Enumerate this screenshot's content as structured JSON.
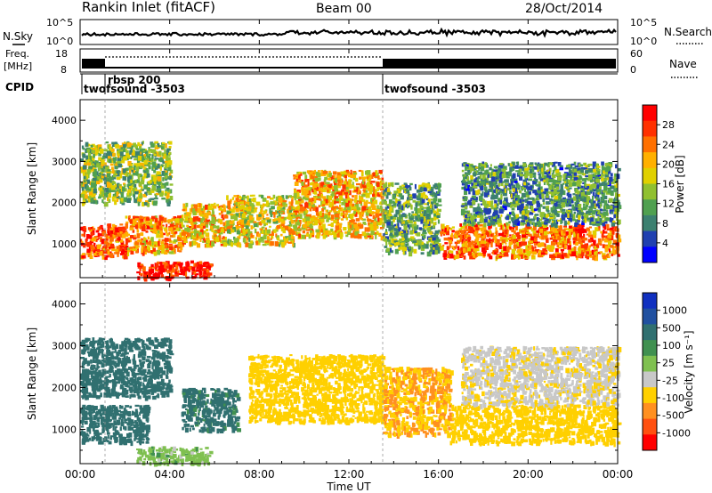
{
  "header": {
    "title": "Rankin Inlet (fitACF)",
    "beam": "Beam 00",
    "date": "28/Oct/2014"
  },
  "top_panels": {
    "nsky_label": "N.Sky",
    "nsearch_label": "N.Search",
    "nsky_ticks": [
      "10^5",
      "10^0"
    ],
    "nsearch_ticks": [
      "10^5",
      "10^0"
    ],
    "freq_label": "Freq.",
    "freq_unit": "[MHz]",
    "freq_ticks": [
      "18",
      "8"
    ],
    "nave_label": "Nave",
    "nave_ticks": [
      "60",
      "0"
    ],
    "cpid_label": "CPID",
    "cpid_entries": [
      {
        "name": "twofsound -3503",
        "start_hour": 0.0
      },
      {
        "name": "rbsp 200",
        "start_hour": 1.05
      },
      {
        "name": "twofsound -3503",
        "start_hour": 13.5
      }
    ]
  },
  "power_colorbar": {
    "label": "Power [dB]",
    "ticks": [
      "28",
      "24",
      "20",
      "16",
      "12",
      "8",
      "4"
    ],
    "colors": [
      "#0000ff",
      "#2040b0",
      "#3c8070",
      "#50a050",
      "#90c030",
      "#e0d000",
      "#ffb000",
      "#ff7000",
      "#ff3000",
      "#ff0000"
    ]
  },
  "velocity_colorbar": {
    "label": "Velocity [m s⁻¹]",
    "ticks": [
      "1000",
      "500",
      "100",
      "25",
      "-25",
      "-100",
      "-500",
      "-1000"
    ],
    "colors": [
      "#1030c0",
      "#2050a0",
      "#307070",
      "#409050",
      "#7fc050",
      "#c8c8c8",
      "#ffd000",
      "#ff9020",
      "#ff5010",
      "#ff0000"
    ]
  },
  "x_axis": {
    "label": "Time UT",
    "ticks": [
      "00:00",
      "04:00",
      "08:00",
      "12:00",
      "16:00",
      "20:00",
      "00:00"
    ]
  },
  "chart_data": [
    {
      "type": "heatmap",
      "title": "Power",
      "xlabel": "Time UT",
      "ylabel": "Slant Range [km]",
      "xlim": [
        0,
        24
      ],
      "ylim": [
        180,
        4500
      ],
      "y_ticks": [
        1000,
        2000,
        3000,
        4000
      ],
      "colorbar_label": "Power [dB]",
      "colorbar_range": [
        0,
        32
      ],
      "bands": [
        {
          "t_start": 0.0,
          "t_end": 2.0,
          "r_low": 700,
          "r_high": 1500,
          "value": 26
        },
        {
          "t_start": 2.0,
          "t_end": 4.5,
          "r_low": 800,
          "r_high": 1700,
          "value": 22
        },
        {
          "t_start": 2.5,
          "t_end": 5.8,
          "r_low": 200,
          "r_high": 600,
          "value": 30
        },
        {
          "t_start": 4.5,
          "t_end": 6.5,
          "r_low": 1000,
          "r_high": 2000,
          "value": 20
        },
        {
          "t_start": 6.5,
          "t_end": 9.5,
          "r_low": 1000,
          "r_high": 2200,
          "value": 18
        },
        {
          "t_start": 9.5,
          "t_end": 13.5,
          "r_low": 1200,
          "r_high": 2800,
          "value": 20
        },
        {
          "t_start": 13.5,
          "t_end": 16.0,
          "r_low": 800,
          "r_high": 2500,
          "value": 12
        },
        {
          "t_start": 16.0,
          "t_end": 24.0,
          "r_low": 700,
          "r_high": 1500,
          "value": 24
        },
        {
          "t_start": 17.0,
          "t_end": 24.0,
          "r_low": 1500,
          "r_high": 3000,
          "value": 10
        },
        {
          "t_start": 0.0,
          "t_end": 4.0,
          "r_low": 2000,
          "r_high": 3500,
          "value": 14
        }
      ]
    },
    {
      "type": "heatmap",
      "title": "Velocity",
      "xlabel": "Time UT",
      "ylabel": "Slant Range [km]",
      "xlim": [
        0,
        24
      ],
      "ylim": [
        180,
        4500
      ],
      "y_ticks": [
        1000,
        2000,
        3000,
        4000
      ],
      "colorbar_label": "Velocity [m s⁻¹]",
      "bands": [
        {
          "t_start": 0.0,
          "t_end": 3.0,
          "r_low": 700,
          "r_high": 1600,
          "value": 300
        },
        {
          "t_start": 2.5,
          "t_end": 5.8,
          "r_low": 200,
          "r_high": 600,
          "value": 0
        },
        {
          "t_start": 0.0,
          "t_end": 4.0,
          "r_low": 1800,
          "r_high": 3200,
          "value": 200
        },
        {
          "t_start": 4.5,
          "t_end": 7.0,
          "r_low": 1000,
          "r_high": 2000,
          "value": 150
        },
        {
          "t_start": 7.5,
          "t_end": 13.5,
          "r_low": 1200,
          "r_high": 2800,
          "value": -300
        },
        {
          "t_start": 13.5,
          "t_end": 16.5,
          "r_low": 900,
          "r_high": 2500,
          "value": -500
        },
        {
          "t_start": 16.5,
          "t_end": 24.0,
          "r_low": 700,
          "r_high": 1600,
          "value": -250
        },
        {
          "t_start": 17.0,
          "t_end": 24.0,
          "r_low": 1600,
          "r_high": 3000,
          "value": -80
        }
      ]
    }
  ]
}
